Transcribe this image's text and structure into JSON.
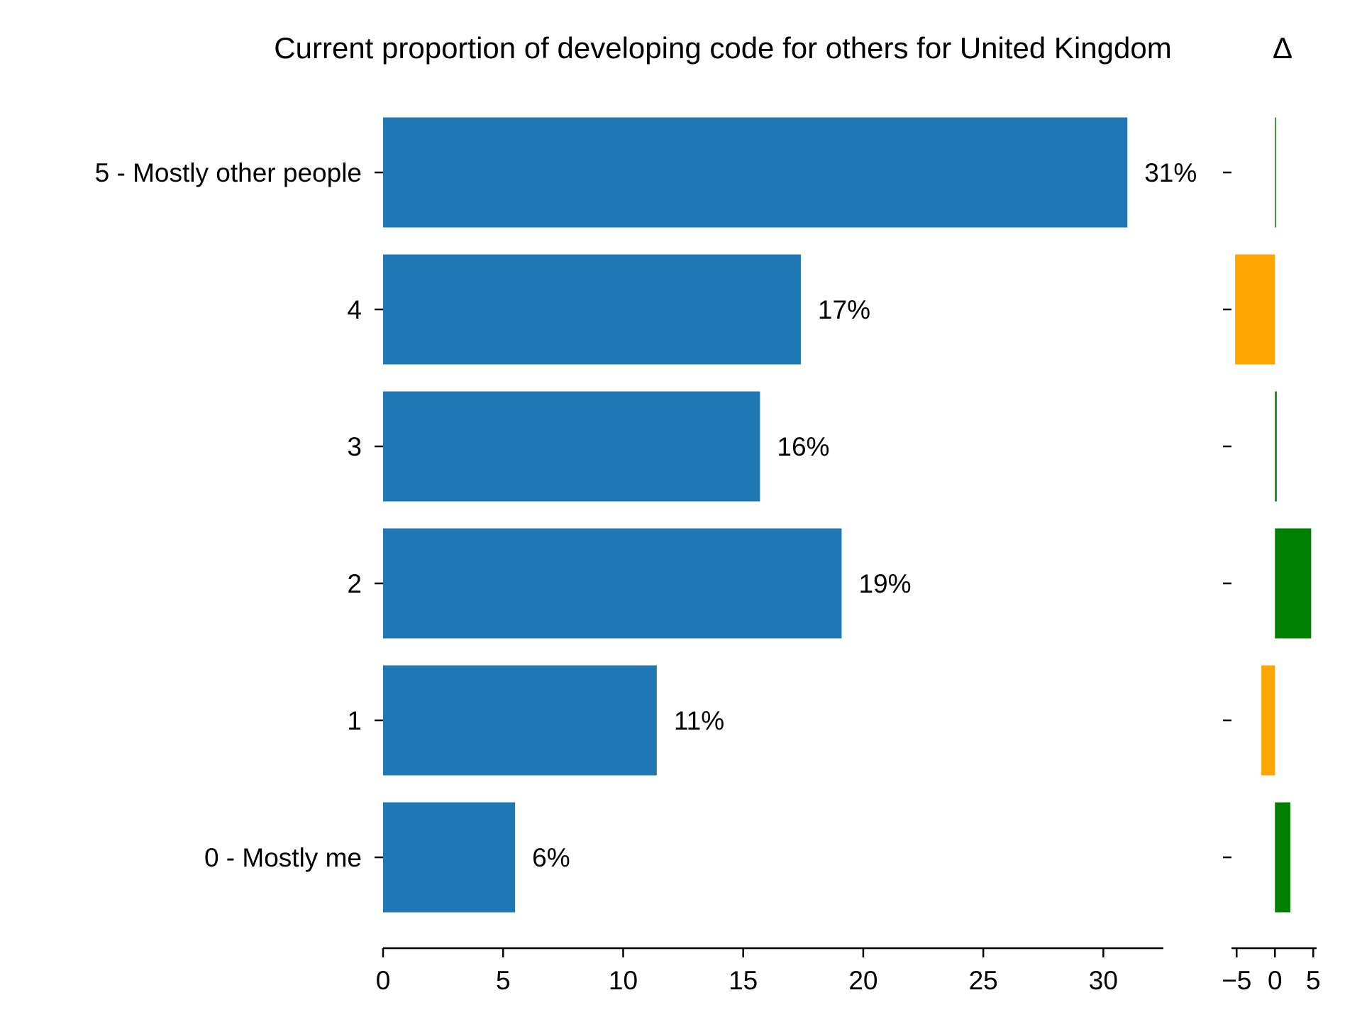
{
  "chart_data": [
    {
      "type": "bar",
      "orientation": "horizontal",
      "title": "Current proportion of developing code for others for United Kingdom",
      "categories": [
        "5 - Mostly other people",
        "4",
        "3",
        "2",
        "1",
        "0 - Mostly me"
      ],
      "values": [
        31,
        17.4,
        15.7,
        19.1,
        11.4,
        5.5
      ],
      "value_labels": [
        "31%",
        "17%",
        "16%",
        "19%",
        "11%",
        "6%"
      ],
      "xticks": [
        "0",
        "5",
        "10",
        "15",
        "20",
        "25",
        "30"
      ],
      "xlim": [
        0,
        32.5
      ],
      "color": "#1f77b4",
      "grid": false
    },
    {
      "type": "bar",
      "orientation": "horizontal",
      "title": "Δ",
      "categories": [
        "5 - Mostly other people",
        "4",
        "3",
        "2",
        "1",
        "0 - Mostly me"
      ],
      "values": [
        0.05,
        -2.2,
        0.1,
        2.0,
        -0.75,
        0.85
      ],
      "xticks": [
        "−5",
        "0",
        "5"
      ],
      "xlim": [
        -2.4,
        2.3
      ],
      "positive_color": "#008000",
      "negative_color": "#ffa500",
      "grid": false
    }
  ]
}
